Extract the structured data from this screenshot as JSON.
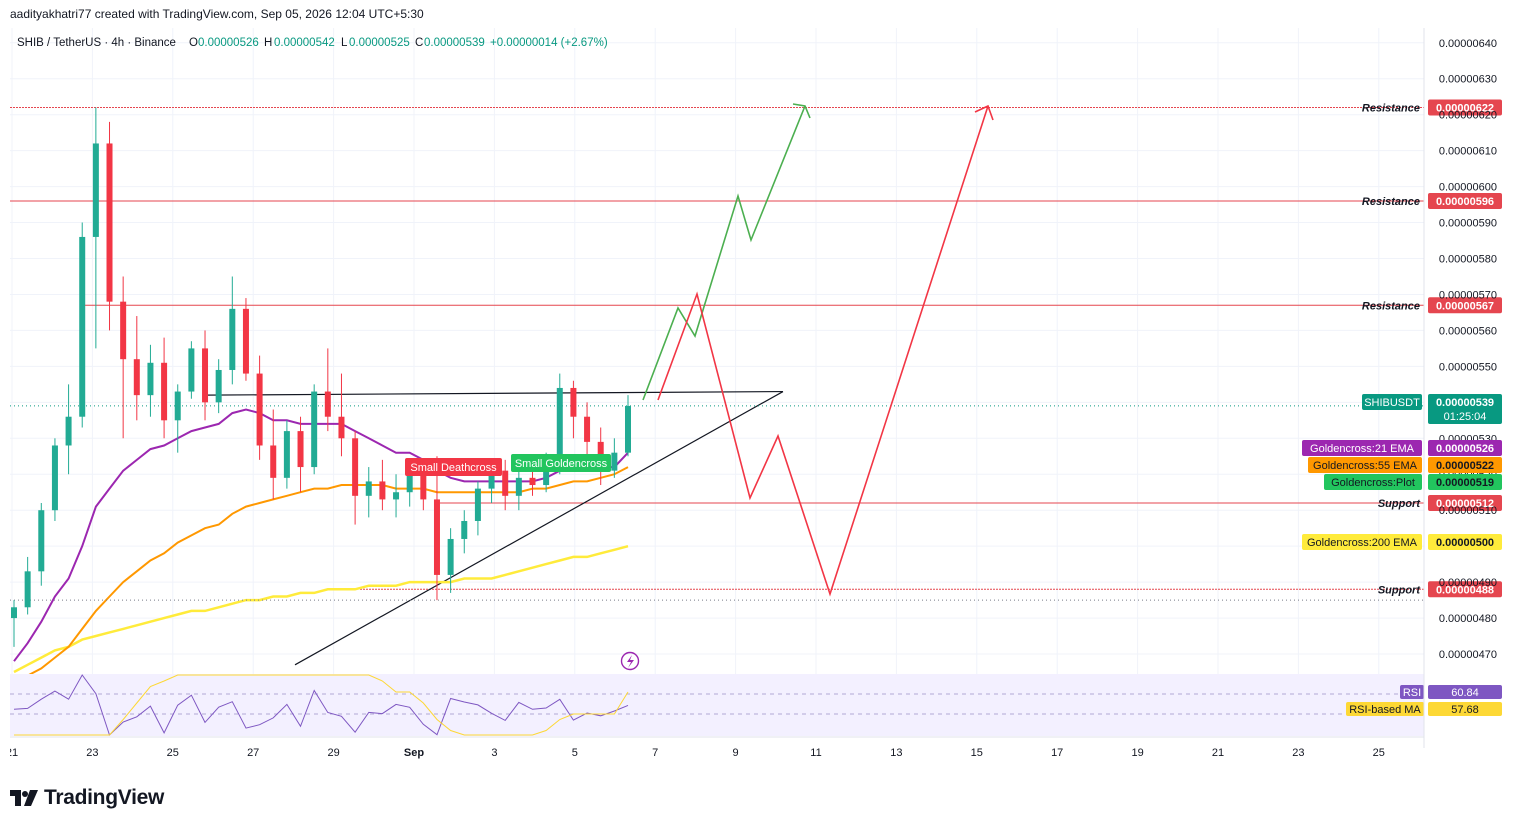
{
  "credit": "aadityakhatri77 created with TradingView.com, Sep 05, 2026 12:04 UTC+5:30",
  "brand": "TradingView",
  "header": {
    "symbol": "SHIB / TetherUS · 4h · Binance",
    "o_label": "O",
    "o": "0.00000526",
    "h_label": "H",
    "h": "0.00000542",
    "l_label": "L",
    "l": "0.00000525",
    "c_label": "C",
    "c": "0.00000539",
    "change": "+0.00000014 (+2.67%)"
  },
  "colors": {
    "up": "#22ab94",
    "down": "#f23645",
    "ema21": "#9c27b0",
    "ema55": "#ff9800",
    "ema200": "#ffeb3b",
    "resistance": "#e5464f",
    "rsi": "#7e57c2",
    "rsi_ma": "#fdd835",
    "projection_green": "#4caf50",
    "projection_red": "#f23645",
    "last_price": "#089981"
  },
  "chart_data": {
    "type": "candlestick",
    "symbol": "SHIBUSDT",
    "timeframe": "4h",
    "y_ticks": [
      "0.00000640",
      "0.00000630",
      "0.00000620",
      "0.00000610",
      "0.00000600",
      "0.00000590",
      "0.00000580",
      "0.00000570",
      "0.00000560",
      "0.00000550",
      "0.00000540",
      "0.00000530",
      "0.00000520",
      "0.00000510",
      "0.00000500",
      "0.00000490",
      "0.00000480",
      "0.00000470"
    ],
    "x_ticks": [
      "21",
      "23",
      "25",
      "27",
      "29",
      "Sep",
      "3",
      "5",
      "7",
      "9",
      "11",
      "13",
      "15",
      "17",
      "19",
      "21",
      "23",
      "25"
    ],
    "ylim": [
      4.65e-06,
      6.43e-06
    ],
    "levels": [
      {
        "label": "Resistance",
        "value": "0.00000622"
      },
      {
        "label": "Resistance",
        "value": "0.00000596"
      },
      {
        "label": "Resistance",
        "value": "0.00000567"
      },
      {
        "label": "Support",
        "value": "0.00000512"
      },
      {
        "label": "Support",
        "value": "0.00000488"
      }
    ],
    "indicator_tags": [
      {
        "label": "SHIBUSDT",
        "value": "0.00000539",
        "countdown": "01:25:04"
      },
      {
        "label": "Goldencross:21 EMA",
        "value": "0.00000526"
      },
      {
        "label": "Goldencross:55 EMA",
        "value": "0.00000522"
      },
      {
        "label": "Goldencross:Plot",
        "value": "0.00000519"
      },
      {
        "label": "Goldencross:200 EMA",
        "value": "0.00000500"
      }
    ],
    "annotations": [
      "Small Deathcross",
      "Small Goldencross"
    ],
    "candles": [
      {
        "o": 4.8e-06,
        "h": 4.85e-06,
        "l": 4.72e-06,
        "c": 4.83e-06
      },
      {
        "o": 4.83e-06,
        "h": 4.97e-06,
        "l": 4.81e-06,
        "c": 4.93e-06
      },
      {
        "o": 4.93e-06,
        "h": 5.12e-06,
        "l": 4.89e-06,
        "c": 5.1e-06
      },
      {
        "o": 5.1e-06,
        "h": 5.3e-06,
        "l": 5.07e-06,
        "c": 5.28e-06
      },
      {
        "o": 5.28e-06,
        "h": 5.45e-06,
        "l": 5.2e-06,
        "c": 5.36e-06
      },
      {
        "o": 5.36e-06,
        "h": 5.9e-06,
        "l": 5.33e-06,
        "c": 5.86e-06
      },
      {
        "o": 5.86e-06,
        "h": 6.22e-06,
        "l": 5.55e-06,
        "c": 6.12e-06
      },
      {
        "o": 6.12e-06,
        "h": 6.18e-06,
        "l": 5.6e-06,
        "c": 5.68e-06
      },
      {
        "o": 5.68e-06,
        "h": 5.75e-06,
        "l": 5.3e-06,
        "c": 5.52e-06
      },
      {
        "o": 5.52e-06,
        "h": 5.64e-06,
        "l": 5.35e-06,
        "c": 5.42e-06
      },
      {
        "o": 5.42e-06,
        "h": 5.56e-06,
        "l": 5.36e-06,
        "c": 5.51e-06
      },
      {
        "o": 5.51e-06,
        "h": 5.58e-06,
        "l": 5.3e-06,
        "c": 5.35e-06
      },
      {
        "o": 5.35e-06,
        "h": 5.45e-06,
        "l": 5.26e-06,
        "c": 5.43e-06
      },
      {
        "o": 5.43e-06,
        "h": 5.57e-06,
        "l": 5.41e-06,
        "c": 5.55e-06
      },
      {
        "o": 5.55e-06,
        "h": 5.6e-06,
        "l": 5.35e-06,
        "c": 5.4e-06
      },
      {
        "o": 5.4e-06,
        "h": 5.52e-06,
        "l": 5.37e-06,
        "c": 5.49e-06
      },
      {
        "o": 5.49e-06,
        "h": 5.75e-06,
        "l": 5.45e-06,
        "c": 5.66e-06
      },
      {
        "o": 5.66e-06,
        "h": 5.69e-06,
        "l": 5.46e-06,
        "c": 5.48e-06
      },
      {
        "o": 5.48e-06,
        "h": 5.53e-06,
        "l": 5.24e-06,
        "c": 5.28e-06
      },
      {
        "o": 5.28e-06,
        "h": 5.38e-06,
        "l": 5.13e-06,
        "c": 5.19e-06
      },
      {
        "o": 5.19e-06,
        "h": 5.35e-06,
        "l": 5.16e-06,
        "c": 5.32e-06
      },
      {
        "o": 5.32e-06,
        "h": 5.36e-06,
        "l": 5.15e-06,
        "c": 5.22e-06
      },
      {
        "o": 5.22e-06,
        "h": 5.45e-06,
        "l": 5.2e-06,
        "c": 5.43e-06
      },
      {
        "o": 5.43e-06,
        "h": 5.55e-06,
        "l": 5.32e-06,
        "c": 5.36e-06
      },
      {
        "o": 5.36e-06,
        "h": 5.48e-06,
        "l": 5.25e-06,
        "c": 5.3e-06
      },
      {
        "o": 5.3e-06,
        "h": 5.32e-06,
        "l": 5.06e-06,
        "c": 5.14e-06
      },
      {
        "o": 5.14e-06,
        "h": 5.22e-06,
        "l": 5.08e-06,
        "c": 5.18e-06
      },
      {
        "o": 5.18e-06,
        "h": 5.24e-06,
        "l": 5.1e-06,
        "c": 5.13e-06
      },
      {
        "o": 5.13e-06,
        "h": 5.2e-06,
        "l": 5.08e-06,
        "c": 5.15e-06
      },
      {
        "o": 5.15e-06,
        "h": 5.24e-06,
        "l": 5.11e-06,
        "c": 5.2e-06
      },
      {
        "o": 5.2e-06,
        "h": 5.22e-06,
        "l": 5.1e-06,
        "c": 5.13e-06
      },
      {
        "o": 5.13e-06,
        "h": 5.25e-06,
        "l": 4.85e-06,
        "c": 4.92e-06
      },
      {
        "o": 4.92e-06,
        "h": 5.05e-06,
        "l": 4.87e-06,
        "c": 5.02e-06
      },
      {
        "o": 5.02e-06,
        "h": 5.1e-06,
        "l": 4.98e-06,
        "c": 5.07e-06
      },
      {
        "o": 5.07e-06,
        "h": 5.18e-06,
        "l": 5.03e-06,
        "c": 5.16e-06
      },
      {
        "o": 5.16e-06,
        "h": 5.23e-06,
        "l": 5.12e-06,
        "c": 5.21e-06
      },
      {
        "o": 5.21e-06,
        "h": 5.24e-06,
        "l": 5.1e-06,
        "c": 5.14e-06
      },
      {
        "o": 5.14e-06,
        "h": 5.22e-06,
        "l": 5.1e-06,
        "c": 5.19e-06
      },
      {
        "o": 5.19e-06,
        "h": 5.24e-06,
        "l": 5.14e-06,
        "c": 5.17e-06
      },
      {
        "o": 5.17e-06,
        "h": 5.26e-06,
        "l": 5.15e-06,
        "c": 5.24e-06
      },
      {
        "o": 5.24e-06,
        "h": 5.48e-06,
        "l": 5.2e-06,
        "c": 5.44e-06
      },
      {
        "o": 5.44e-06,
        "h": 5.46e-06,
        "l": 5.3e-06,
        "c": 5.36e-06
      },
      {
        "o": 5.36e-06,
        "h": 5.4e-06,
        "l": 5.25e-06,
        "c": 5.29e-06
      },
      {
        "o": 5.29e-06,
        "h": 5.33e-06,
        "l": 5.17e-06,
        "c": 5.21e-06
      },
      {
        "o": 5.21e-06,
        "h": 5.3e-06,
        "l": 5.19e-06,
        "c": 5.26e-06
      },
      {
        "o": 5.26e-06,
        "h": 5.42e-06,
        "l": 5.25e-06,
        "c": 5.39e-06
      }
    ],
    "ema21": [
      4.68e-06,
      4.73e-06,
      4.79e-06,
      4.86e-06,
      4.91e-06,
      5e-06,
      5.11e-06,
      5.16e-06,
      5.21e-06,
      5.24e-06,
      5.27e-06,
      5.28e-06,
      5.3e-06,
      5.32e-06,
      5.33e-06,
      5.34e-06,
      5.37e-06,
      5.38e-06,
      5.37e-06,
      5.35e-06,
      5.35e-06,
      5.34e-06,
      5.34e-06,
      5.34e-06,
      5.34e-06,
      5.32e-06,
      5.3e-06,
      5.28e-06,
      5.26e-06,
      5.26e-06,
      5.24e-06,
      5.21e-06,
      5.19e-06,
      5.18e-06,
      5.18e-06,
      5.18e-06,
      5.18e-06,
      5.18e-06,
      5.18e-06,
      5.19e-06,
      5.21e-06,
      5.22e-06,
      5.22e-06,
      5.22e-06,
      5.22e-06,
      5.26e-06
    ],
    "ema55": [
      4.62e-06,
      4.64e-06,
      4.66e-06,
      4.69e-06,
      4.72e-06,
      4.77e-06,
      4.82e-06,
      4.86e-06,
      4.9e-06,
      4.93e-06,
      4.96e-06,
      4.98e-06,
      5.01e-06,
      5.03e-06,
      5.05e-06,
      5.06e-06,
      5.09e-06,
      5.11e-06,
      5.12e-06,
      5.13e-06,
      5.14e-06,
      5.15e-06,
      5.16e-06,
      5.16e-06,
      5.17e-06,
      5.17e-06,
      5.17e-06,
      5.17e-06,
      5.16e-06,
      5.16e-06,
      5.16e-06,
      5.15e-06,
      5.15e-06,
      5.15e-06,
      5.15e-06,
      5.15e-06,
      5.15e-06,
      5.15e-06,
      5.16e-06,
      5.16e-06,
      5.17e-06,
      5.18e-06,
      5.18e-06,
      5.19e-06,
      5.2e-06,
      5.22e-06
    ],
    "ema200": [
      4.65e-06,
      4.67e-06,
      4.69e-06,
      4.71e-06,
      4.72e-06,
      4.74e-06,
      4.75e-06,
      4.76e-06,
      4.77e-06,
      4.78e-06,
      4.79e-06,
      4.8e-06,
      4.81e-06,
      4.82e-06,
      4.82e-06,
      4.83e-06,
      4.84e-06,
      4.85e-06,
      4.85e-06,
      4.86e-06,
      4.86e-06,
      4.87e-06,
      4.87e-06,
      4.88e-06,
      4.88e-06,
      4.88e-06,
      4.89e-06,
      4.89e-06,
      4.89e-06,
      4.9e-06,
      4.9e-06,
      4.9e-06,
      4.9e-06,
      4.91e-06,
      4.91e-06,
      4.91e-06,
      4.92e-06,
      4.93e-06,
      4.94e-06,
      4.95e-06,
      4.96e-06,
      4.97e-06,
      4.97e-06,
      4.98e-06,
      4.99e-06,
      5e-06
    ],
    "rsi": {
      "label": "RSI",
      "value": "60.84",
      "ma_label": "RSI-based MA",
      "ma_value": "57.68"
    }
  }
}
